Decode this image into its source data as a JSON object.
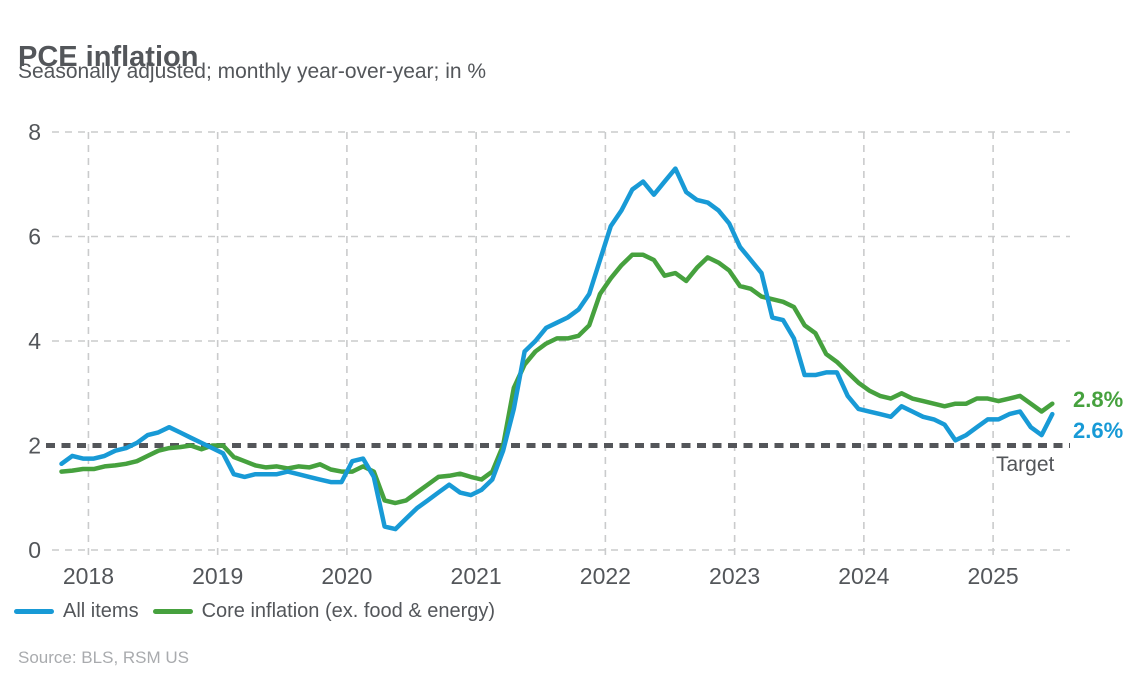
{
  "header": {
    "title": "PCE inflation",
    "subtitle": "Seasonally adjusted; monthly year-over-year; in %"
  },
  "chart_data": {
    "type": "line",
    "title": "PCE inflation",
    "subtitle": "Seasonally adjusted; monthly year-over-year; in %",
    "xlabel": "",
    "ylabel": "",
    "ylim": [
      0,
      8
    ],
    "yticks": [
      0,
      2,
      4,
      6,
      8
    ],
    "xticks": [
      "2018",
      "2019",
      "2020",
      "2021",
      "2022",
      "2023",
      "2024",
      "2025"
    ],
    "grid": "dashed",
    "legend_position": "bottom-left",
    "x": [
      "2017-10",
      "2017-11",
      "2017-12",
      "2018-01",
      "2018-02",
      "2018-03",
      "2018-04",
      "2018-05",
      "2018-06",
      "2018-07",
      "2018-08",
      "2018-09",
      "2018-10",
      "2018-11",
      "2018-12",
      "2019-01",
      "2019-02",
      "2019-03",
      "2019-04",
      "2019-05",
      "2019-06",
      "2019-07",
      "2019-08",
      "2019-09",
      "2019-10",
      "2019-11",
      "2019-12",
      "2020-01",
      "2020-02",
      "2020-03",
      "2020-04",
      "2020-05",
      "2020-06",
      "2020-07",
      "2020-08",
      "2020-09",
      "2020-10",
      "2020-11",
      "2020-12",
      "2021-01",
      "2021-02",
      "2021-03",
      "2021-04",
      "2021-05",
      "2021-06",
      "2021-07",
      "2021-08",
      "2021-09",
      "2021-10",
      "2021-11",
      "2021-12",
      "2022-01",
      "2022-02",
      "2022-03",
      "2022-04",
      "2022-05",
      "2022-06",
      "2022-07",
      "2022-08",
      "2022-09",
      "2022-10",
      "2022-11",
      "2022-12",
      "2023-01",
      "2023-02",
      "2023-03",
      "2023-04",
      "2023-05",
      "2023-06",
      "2023-07",
      "2023-08",
      "2023-09",
      "2023-10",
      "2023-11",
      "2023-12",
      "2024-01",
      "2024-02",
      "2024-03",
      "2024-04",
      "2024-05",
      "2024-06",
      "2024-07",
      "2024-08",
      "2024-09",
      "2024-10",
      "2024-11",
      "2024-12",
      "2025-01",
      "2025-02",
      "2025-03",
      "2025-04",
      "2025-05",
      "2025-06"
    ],
    "series": [
      {
        "name": "All items",
        "color": "#189ad6",
        "values": [
          1.65,
          1.8,
          1.75,
          1.75,
          1.8,
          1.9,
          1.95,
          2.05,
          2.2,
          2.25,
          2.35,
          2.25,
          2.15,
          2.05,
          1.95,
          1.85,
          1.45,
          1.4,
          1.45,
          1.45,
          1.45,
          1.5,
          1.45,
          1.4,
          1.35,
          1.3,
          1.3,
          1.7,
          1.75,
          1.4,
          0.45,
          0.4,
          0.6,
          0.8,
          0.95,
          1.1,
          1.25,
          1.1,
          1.05,
          1.15,
          1.35,
          1.9,
          2.7,
          3.8,
          4.0,
          4.25,
          4.35,
          4.45,
          4.6,
          4.9,
          5.55,
          6.2,
          6.5,
          6.9,
          7.05,
          6.8,
          7.05,
          7.3,
          6.85,
          6.7,
          6.65,
          6.5,
          6.25,
          5.8,
          5.55,
          5.3,
          4.45,
          4.4,
          4.05,
          3.35,
          3.35,
          3.4,
          3.4,
          2.95,
          2.7,
          2.65,
          2.6,
          2.55,
          2.75,
          2.65,
          2.55,
          2.5,
          2.4,
          2.1,
          2.2,
          2.35,
          2.5,
          2.5,
          2.6,
          2.65,
          2.35,
          2.2,
          2.6
        ]
      },
      {
        "name": "Core inflation (ex. food & energy)",
        "color": "#46a13e",
        "values": [
          1.5,
          1.52,
          1.55,
          1.55,
          1.6,
          1.62,
          1.65,
          1.7,
          1.8,
          1.9,
          1.95,
          1.97,
          2.0,
          1.93,
          2.0,
          2.0,
          1.78,
          1.7,
          1.62,
          1.58,
          1.6,
          1.56,
          1.6,
          1.58,
          1.64,
          1.54,
          1.5,
          1.5,
          1.6,
          1.5,
          0.95,
          0.9,
          0.95,
          1.1,
          1.25,
          1.4,
          1.42,
          1.46,
          1.4,
          1.35,
          1.5,
          2.0,
          3.1,
          3.55,
          3.8,
          3.95,
          4.05,
          4.05,
          4.1,
          4.3,
          4.9,
          5.2,
          5.45,
          5.65,
          5.65,
          5.55,
          5.25,
          5.3,
          5.15,
          5.4,
          5.6,
          5.5,
          5.35,
          5.05,
          5.0,
          4.85,
          4.8,
          4.75,
          4.65,
          4.3,
          4.15,
          3.75,
          3.6,
          3.4,
          3.2,
          3.05,
          2.95,
          2.9,
          3.0,
          2.9,
          2.85,
          2.8,
          2.75,
          2.8,
          2.8,
          2.9,
          2.9,
          2.85,
          2.9,
          2.95,
          2.8,
          2.65,
          2.8
        ]
      }
    ],
    "target_line": {
      "value": 2,
      "label": "Target",
      "color": "#54565a",
      "style": "dashed"
    },
    "end_labels": {
      "core": {
        "text": "2.8%",
        "value": 2.8
      },
      "all": {
        "text": "2.6%",
        "value": 2.6
      }
    }
  },
  "legend": {
    "items": [
      {
        "label": "All items",
        "color": "#189ad6"
      },
      {
        "label": "Core inflation (ex. food & energy)",
        "color": "#46a13e"
      }
    ]
  },
  "annotations": {
    "target_label": "Target"
  },
  "source": "Source: BLS, RSM US",
  "colors": {
    "text": "#53565a",
    "grid": "#cacbcc",
    "target": "#54565a",
    "source_text": "#a9abae",
    "background": "#ffffff",
    "all_items": "#189ad6",
    "core": "#46a13e"
  }
}
